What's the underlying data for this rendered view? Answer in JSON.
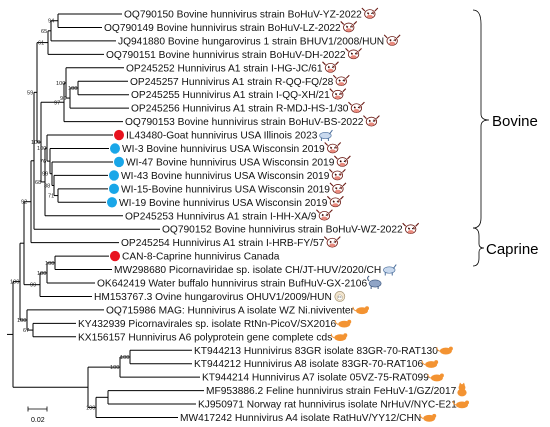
{
  "taxa": [
    {
      "label": "OQ790150 Bovine hunnivirus strain BoHuV-YZ-2022",
      "host": "cow-icon"
    },
    {
      "label": "OQ790149 Bovine hunnivirus strain BoHuV-LZ-2022",
      "host": "cow-icon"
    },
    {
      "label": "JQ941880 Bovine hungarovirus 1 strain BHUV1/2008/HUN",
      "host": "cow-icon"
    },
    {
      "label": "OQ790151 Bovine hunnivirus strain BoHuV-DH-2022",
      "host": "cow-icon"
    },
    {
      "label": "OP245252 Hunnivirus A1 strain I-HG-JC/61",
      "host": "cow-icon"
    },
    {
      "label": "OP245257 Hunnivirus A1 strain R-QQ-FQ/28",
      "host": "cow-icon"
    },
    {
      "label": "OP245255 Hunnivirus A1 strain I-QQ-XH/21",
      "host": "cow-icon"
    },
    {
      "label": "OP245256 Hunnivirus A1 strain R-MDJ-HS-1/30",
      "host": "cow-icon"
    },
    {
      "label": "OQ790153 Bovine hunnivirus strain BoHuV-BS-2022",
      "host": "cow-icon"
    },
    {
      "label": "IL43480-Goat hunnivirus USA Illinois 2023",
      "host": "goat-icon",
      "marker": "#e8131f"
    },
    {
      "label": "WI-3 Bovine hunnivirus USA Wisconsin 2019",
      "host": "cow-icon",
      "marker": "#19a6e8"
    },
    {
      "label": "WI-47 Bovine hunnivirus USA Wisconsin 2019",
      "host": "cow-icon",
      "marker": "#19a6e8"
    },
    {
      "label": "WI-43 Bovine hunnivirus USA Wisconsin 2019",
      "host": "cow-icon",
      "marker": "#19a6e8"
    },
    {
      "label": "WI-15-Bovine hunnivirus USA Wisconsin 2019",
      "host": "cow-icon",
      "marker": "#19a6e8"
    },
    {
      "label": "WI-19 Bovine hunnivirus USA Wisconsin 2019",
      "host": "cow-icon",
      "marker": "#19a6e8"
    },
    {
      "label": "OP245253 Hunnivirus A1 strain I-HH-XA/9",
      "host": "cow-icon"
    },
    {
      "label": "OQ790152 Bovine hunnivirus strain BoHuV-WZ-2022",
      "host": "cow-icon"
    },
    {
      "label": "OP245254 Hunnivirus A1 strain I-HRB-FY/57",
      "host": "cow-icon"
    },
    {
      "label": "CAN-8-Caprine hunnivirus Canada",
      "host": "",
      "marker": "#e8131f"
    },
    {
      "label": "MW298680 Picornaviridae sp. isolate CH/JT-HUV/2020/CH",
      "host": "goat-icon"
    },
    {
      "label": "OK642419 Water buffalo hunnivirus strain BufHuV-GX-2106",
      "host": "buffalo-icon"
    },
    {
      "label": "HM153767.3 Ovine hungarovirus OHUV1/2009/HUN",
      "host": "sheep-icon"
    },
    {
      "label": "OQ715986 MAG: Hunnivirus A isolate WZ Ni.niviventer",
      "host": "rat-icon"
    },
    {
      "label": "KY432939 Picornavirales sp. isolate RtNn-PicoV/SX2016",
      "host": "rat-icon"
    },
    {
      "label": "KX156157 Hunnivirus A6 polyprotein gene complete cds",
      "host": "rat-icon"
    },
    {
      "label": "KT944213 Hunnivirus 83GR isolate 83GR-70-RAT130",
      "host": "rat-icon"
    },
    {
      "label": "KT944212 Hunnivirus A8 isolate 83GR-70-RAT106",
      "host": "rat-icon"
    },
    {
      "label": "KT944214 Hunnivirus A7 isolate 05VZ-75-RAT099",
      "host": "rat-icon"
    },
    {
      "label": "MF953886.2 Feline hunnivirus strain FeHuV-1/GZ/2017",
      "host": "cat-icon"
    },
    {
      "label": "KJ950971 Norway rat hunnivirus isolate NrHuV/NYC-E21",
      "host": "rat-icon"
    },
    {
      "label": "MW417242 Hunnivirus A4 isolate RatHuV/YY12/CHN",
      "host": "rat-icon"
    }
  ],
  "bootstrap": [
    "94",
    "65",
    "61",
    "100",
    "100",
    "90",
    "97",
    "100",
    "76",
    "99",
    "88",
    "71",
    "68",
    "100",
    "59",
    "92",
    "100",
    "100",
    "99",
    "67",
    "100",
    "100",
    "100",
    "100",
    "100"
  ],
  "groups": [
    "Bovine",
    "Caprine"
  ],
  "scale_label": "0.02"
}
